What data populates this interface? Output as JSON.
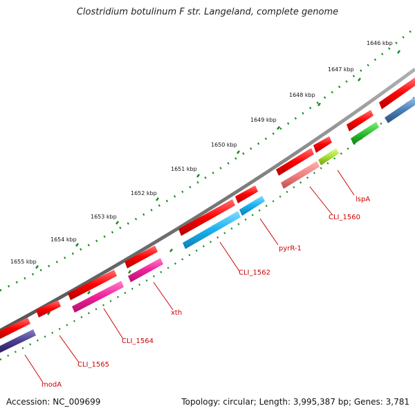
{
  "title": "Clostridium botulinum F str. Langeland, complete genome",
  "accession": "Accession: NC_009699",
  "summary": "Topology: circular; Length: 3,995,387 bp; Genes: 3,781",
  "scale": {
    "labels": [
      "1646 kbp",
      "1647 kbp",
      "1648 kbp",
      "1649 kbp",
      "1650 kbp",
      "1651 kbp",
      "1652 kbp",
      "1653 kbp",
      "1654 kbp",
      "1655 kbp"
    ]
  },
  "genes": [
    {
      "name": "lspA"
    },
    {
      "name": "CLI_1560"
    },
    {
      "name": "pyrR-1"
    },
    {
      "name": "CLI_1562"
    },
    {
      "name": "xth"
    },
    {
      "name": "CLI_1564"
    },
    {
      "name": "CLI_1565"
    },
    {
      "name": "modA"
    }
  ],
  "colors": {
    "backbone": "#7a7a7a",
    "cds_forward": "#ff0000",
    "tick": "#1a8a1a",
    "label": "#cc0000"
  }
}
